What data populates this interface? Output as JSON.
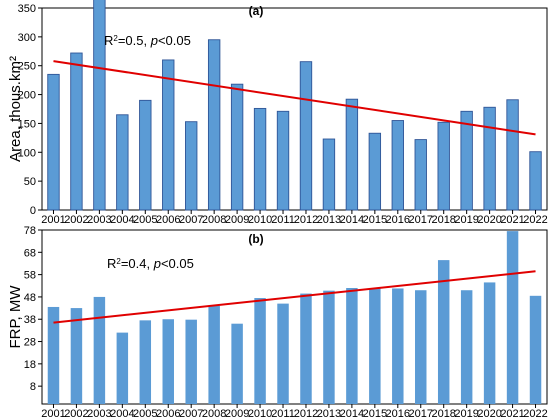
{
  "chart_data": [
    {
      "type": "bar",
      "panel_label": "(a)",
      "ylabel": "Area, thous.km²",
      "annotation": {
        "r2_prefix": "R",
        "r2_sup": "2",
        "r2_value": "=0.5,  ",
        "p_text": "p",
        "p_value": "<0.05"
      },
      "ylim": [
        0,
        350
      ],
      "yticks": [
        0,
        50,
        100,
        150,
        200,
        250,
        300,
        350
      ],
      "categories": [
        "2001",
        "2002",
        "2003",
        "2004",
        "2005",
        "2006",
        "2007",
        "2008",
        "2009",
        "2010",
        "2011",
        "2012",
        "2013",
        "2014",
        "2015",
        "2016",
        "2017",
        "2018",
        "2019",
        "2020",
        "2021",
        "2022"
      ],
      "values": [
        235,
        272,
        366,
        165,
        190,
        260,
        153,
        295,
        218,
        176,
        171,
        257,
        123,
        192,
        133,
        155,
        122,
        152,
        171,
        178,
        191,
        101
      ],
      "trend": {
        "start": 258,
        "end": 131
      },
      "colors": {
        "bar": "#5b9bd5",
        "bar_edge": "#2f5597",
        "trend": "#e00000"
      }
    },
    {
      "type": "bar",
      "panel_label": "(b)",
      "ylabel": "FRP, MW",
      "annotation": {
        "r2_prefix": "R",
        "r2_sup": "2",
        "r2_value": "=0.4,  ",
        "p_text": "p",
        "p_value": "<0.05"
      },
      "ylim": [
        0,
        78
      ],
      "yticks": [
        8,
        18,
        28,
        38,
        48,
        58,
        68,
        78
      ],
      "categories": [
        "2001",
        "2002",
        "2003",
        "2004",
        "2005",
        "2006",
        "2007",
        "2008",
        "2009",
        "2010",
        "2011",
        "2012",
        "2013",
        "2014",
        "2015",
        "2016",
        "2017",
        "2018",
        "2019",
        "2020",
        "2021",
        "2022"
      ],
      "values": [
        43.5,
        43,
        48,
        32,
        37.5,
        38,
        37.8,
        44,
        36,
        47.5,
        45,
        49.5,
        50.8,
        52,
        52,
        51.8,
        51,
        64.5,
        51,
        54.5,
        77.5,
        48.5
      ],
      "trend": {
        "start": 36.5,
        "end": 59.5
      },
      "colors": {
        "bar": "#5b9bd5",
        "bar_edge": "#5b9bd5",
        "trend": "#e00000"
      }
    }
  ]
}
